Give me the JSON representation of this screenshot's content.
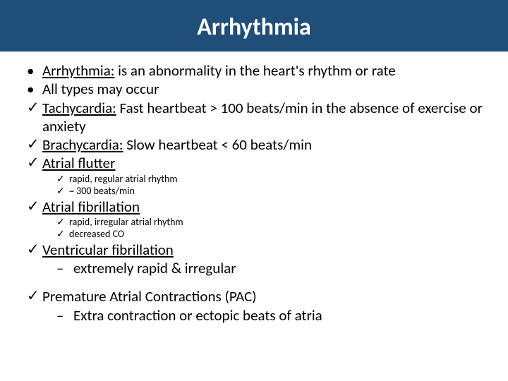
{
  "colors": {
    "banner_bg": "#1f4e79",
    "banner_text": "#ffffff",
    "body_bg": "#ffffff",
    "text": "#000000"
  },
  "title": "Arrhythmia",
  "bullets": {
    "b1_label": "Arrhythmia:",
    "b1_rest": " is an abnormality in the heart's rhythm or rate",
    "b2": "All types may occur",
    "b3_label": "Tachycardia:",
    "b3_rest": " Fast heartbeat > 100 beats/min in the absence of exercise or anxiety",
    "b4_label": "Brachycardia:",
    "b4_rest": "  Slow heartbeat < 60 beats/min",
    "b5_label": "Atrial flutter",
    "b5_s1": "rapid, regular atrial rhythm",
    "b5_s2": "~ 300 beats/min",
    "b6_label": "Atrial fibrillation",
    "b6_s1": "rapid, irregular atrial rhythm",
    "b6_s2": "decreased CO",
    "b7_label": "Ventricular fibrillation",
    "b7_s1": "extremely rapid & irregular",
    "b8": "Premature Atrial Contractions (PAC)",
    "b8_s1": "Extra contraction or ectopic beats of atria"
  },
  "markers": {
    "dot": "•",
    "check": "✓",
    "dash": "–"
  },
  "typography": {
    "title_fontsize": 34,
    "l1_fontsize": 21,
    "l2_fontsize": 14,
    "l2b_fontsize": 21
  }
}
